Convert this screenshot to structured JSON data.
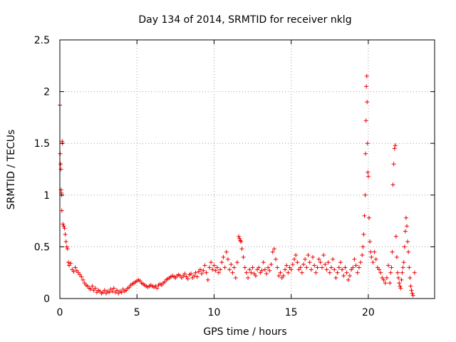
{
  "chart_data": {
    "type": "scatter",
    "title": "Day 134 of 2014, SRMTID for receiver nklg",
    "xlabel": "GPS time / hours",
    "ylabel": "SRMTID / TECUs",
    "xlim": [
      0,
      24.3
    ],
    "ylim": [
      0,
      2.5
    ],
    "x_ticks": [
      0,
      5,
      10,
      15,
      20
    ],
    "x_tick_labels": [
      "0",
      "5",
      "10",
      "15",
      "20"
    ],
    "y_ticks": [
      0,
      0.5,
      1,
      1.5,
      2,
      2.5
    ],
    "y_tick_labels": [
      "0",
      "0.5",
      "1",
      "1.5",
      "2",
      "2.5"
    ],
    "grid": true,
    "marker": "+",
    "color": "#ee0000",
    "series": [
      {
        "name": "SRMTID",
        "points": [
          [
            0.0,
            1.87
          ],
          [
            0.02,
            1.4
          ],
          [
            0.05,
            1.3
          ],
          [
            0.07,
            1.25
          ],
          [
            0.08,
            1.05
          ],
          [
            0.1,
            1.02
          ],
          [
            0.12,
            1.0
          ],
          [
            0.13,
            0.85
          ],
          [
            0.15,
            1.52
          ],
          [
            0.17,
            1.5
          ],
          [
            0.2,
            0.72
          ],
          [
            0.25,
            0.7
          ],
          [
            0.3,
            0.68
          ],
          [
            0.35,
            0.62
          ],
          [
            0.4,
            0.55
          ],
          [
            0.45,
            0.5
          ],
          [
            0.5,
            0.48
          ],
          [
            0.55,
            0.35
          ],
          [
            0.6,
            0.32
          ],
          [
            0.7,
            0.34
          ],
          [
            0.8,
            0.28
          ],
          [
            0.9,
            0.26
          ],
          [
            1.0,
            0.3
          ],
          [
            1.1,
            0.27
          ],
          [
            1.2,
            0.25
          ],
          [
            1.3,
            0.23
          ],
          [
            1.4,
            0.21
          ],
          [
            1.5,
            0.18
          ],
          [
            1.6,
            0.15
          ],
          [
            1.7,
            0.13
          ],
          [
            1.8,
            0.12
          ],
          [
            1.9,
            0.1
          ],
          [
            2.0,
            0.09
          ],
          [
            2.1,
            0.12
          ],
          [
            2.2,
            0.08
          ],
          [
            2.3,
            0.1
          ],
          [
            2.4,
            0.06
          ],
          [
            2.5,
            0.08
          ],
          [
            2.6,
            0.07
          ],
          [
            2.7,
            0.05
          ],
          [
            2.8,
            0.06
          ],
          [
            2.9,
            0.08
          ],
          [
            3.0,
            0.05
          ],
          [
            3.1,
            0.07
          ],
          [
            3.2,
            0.06
          ],
          [
            3.3,
            0.09
          ],
          [
            3.4,
            0.07
          ],
          [
            3.5,
            0.1
          ],
          [
            3.6,
            0.06
          ],
          [
            3.7,
            0.08
          ],
          [
            3.8,
            0.05
          ],
          [
            3.9,
            0.07
          ],
          [
            4.0,
            0.06
          ],
          [
            4.1,
            0.09
          ],
          [
            4.2,
            0.07
          ],
          [
            4.3,
            0.08
          ],
          [
            4.4,
            0.1
          ],
          [
            4.5,
            0.11
          ],
          [
            4.6,
            0.13
          ],
          [
            4.7,
            0.14
          ],
          [
            4.8,
            0.15
          ],
          [
            4.9,
            0.16
          ],
          [
            5.0,
            0.17
          ],
          [
            5.1,
            0.18
          ],
          [
            5.2,
            0.17
          ],
          [
            5.3,
            0.15
          ],
          [
            5.4,
            0.14
          ],
          [
            5.5,
            0.13
          ],
          [
            5.6,
            0.12
          ],
          [
            5.7,
            0.11
          ],
          [
            5.8,
            0.12
          ],
          [
            5.9,
            0.13
          ],
          [
            6.0,
            0.12
          ],
          [
            6.1,
            0.11
          ],
          [
            6.2,
            0.12
          ],
          [
            6.3,
            0.1
          ],
          [
            6.4,
            0.13
          ],
          [
            6.5,
            0.14
          ],
          [
            6.6,
            0.13
          ],
          [
            6.7,
            0.15
          ],
          [
            6.8,
            0.16
          ],
          [
            6.9,
            0.18
          ],
          [
            7.0,
            0.19
          ],
          [
            7.1,
            0.2
          ],
          [
            7.2,
            0.21
          ],
          [
            7.3,
            0.22
          ],
          [
            7.4,
            0.21
          ],
          [
            7.5,
            0.2
          ],
          [
            7.6,
            0.22
          ],
          [
            7.7,
            0.23
          ],
          [
            7.8,
            0.22
          ],
          [
            7.9,
            0.2
          ],
          [
            8.0,
            0.22
          ],
          [
            8.1,
            0.24
          ],
          [
            8.2,
            0.21
          ],
          [
            8.3,
            0.19
          ],
          [
            8.4,
            0.23
          ],
          [
            8.5,
            0.24
          ],
          [
            8.6,
            0.2
          ],
          [
            8.7,
            0.22
          ],
          [
            8.8,
            0.25
          ],
          [
            8.9,
            0.21
          ],
          [
            9.0,
            0.26
          ],
          [
            9.1,
            0.28
          ],
          [
            9.2,
            0.24
          ],
          [
            9.3,
            0.27
          ],
          [
            9.4,
            0.32
          ],
          [
            9.5,
            0.25
          ],
          [
            9.6,
            0.18
          ],
          [
            9.7,
            0.3
          ],
          [
            9.8,
            0.35
          ],
          [
            9.9,
            0.28
          ],
          [
            10.0,
            0.32
          ],
          [
            10.1,
            0.27
          ],
          [
            10.2,
            0.3
          ],
          [
            10.3,
            0.25
          ],
          [
            10.4,
            0.28
          ],
          [
            10.5,
            0.35
          ],
          [
            10.6,
            0.4
          ],
          [
            10.7,
            0.3
          ],
          [
            10.8,
            0.45
          ],
          [
            10.9,
            0.38
          ],
          [
            11.0,
            0.28
          ],
          [
            11.1,
            0.33
          ],
          [
            11.2,
            0.25
          ],
          [
            11.3,
            0.3
          ],
          [
            11.4,
            0.2
          ],
          [
            11.5,
            0.35
          ],
          [
            11.6,
            0.6
          ],
          [
            11.65,
            0.58
          ],
          [
            11.7,
            0.56
          ],
          [
            11.75,
            0.55
          ],
          [
            11.8,
            0.48
          ],
          [
            11.9,
            0.4
          ],
          [
            12.0,
            0.3
          ],
          [
            12.1,
            0.25
          ],
          [
            12.2,
            0.2
          ],
          [
            12.3,
            0.28
          ],
          [
            12.4,
            0.25
          ],
          [
            12.5,
            0.3
          ],
          [
            12.6,
            0.24
          ],
          [
            12.7,
            0.22
          ],
          [
            12.8,
            0.28
          ],
          [
            12.9,
            0.3
          ],
          [
            13.0,
            0.25
          ],
          [
            13.1,
            0.27
          ],
          [
            13.2,
            0.35
          ],
          [
            13.3,
            0.28
          ],
          [
            13.4,
            0.24
          ],
          [
            13.5,
            0.3
          ],
          [
            13.6,
            0.27
          ],
          [
            13.7,
            0.33
          ],
          [
            13.8,
            0.45
          ],
          [
            13.9,
            0.48
          ],
          [
            14.0,
            0.38
          ],
          [
            14.1,
            0.3
          ],
          [
            14.2,
            0.22
          ],
          [
            14.3,
            0.25
          ],
          [
            14.4,
            0.2
          ],
          [
            14.5,
            0.22
          ],
          [
            14.6,
            0.28
          ],
          [
            14.7,
            0.32
          ],
          [
            14.8,
            0.25
          ],
          [
            14.9,
            0.3
          ],
          [
            15.0,
            0.28
          ],
          [
            15.1,
            0.33
          ],
          [
            15.2,
            0.38
          ],
          [
            15.3,
            0.42
          ],
          [
            15.4,
            0.35
          ],
          [
            15.5,
            0.28
          ],
          [
            15.6,
            0.3
          ],
          [
            15.7,
            0.25
          ],
          [
            15.8,
            0.33
          ],
          [
            15.9,
            0.38
          ],
          [
            16.0,
            0.3
          ],
          [
            16.1,
            0.42
          ],
          [
            16.2,
            0.35
          ],
          [
            16.3,
            0.28
          ],
          [
            16.4,
            0.4
          ],
          [
            16.5,
            0.32
          ],
          [
            16.6,
            0.25
          ],
          [
            16.7,
            0.3
          ],
          [
            16.8,
            0.38
          ],
          [
            16.9,
            0.35
          ],
          [
            17.0,
            0.3
          ],
          [
            17.1,
            0.42
          ],
          [
            17.2,
            0.33
          ],
          [
            17.3,
            0.28
          ],
          [
            17.4,
            0.35
          ],
          [
            17.5,
            0.25
          ],
          [
            17.6,
            0.3
          ],
          [
            17.7,
            0.38
          ],
          [
            17.8,
            0.28
          ],
          [
            17.9,
            0.2
          ],
          [
            18.0,
            0.25
          ],
          [
            18.1,
            0.3
          ],
          [
            18.2,
            0.35
          ],
          [
            18.3,
            0.28
          ],
          [
            18.4,
            0.22
          ],
          [
            18.5,
            0.3
          ],
          [
            18.6,
            0.25
          ],
          [
            18.7,
            0.18
          ],
          [
            18.8,
            0.22
          ],
          [
            18.9,
            0.28
          ],
          [
            19.0,
            0.3
          ],
          [
            19.1,
            0.38
          ],
          [
            19.2,
            0.32
          ],
          [
            19.3,
            0.25
          ],
          [
            19.4,
            0.3
          ],
          [
            19.5,
            0.35
          ],
          [
            19.6,
            0.42
          ],
          [
            19.65,
            0.5
          ],
          [
            19.7,
            0.62
          ],
          [
            19.75,
            0.8
          ],
          [
            19.8,
            1.0
          ],
          [
            19.82,
            1.4
          ],
          [
            19.85,
            1.72
          ],
          [
            19.87,
            2.05
          ],
          [
            19.9,
            2.15
          ],
          [
            19.92,
            1.9
          ],
          [
            19.95,
            1.5
          ],
          [
            19.97,
            1.22
          ],
          [
            20.0,
            1.18
          ],
          [
            20.05,
            0.78
          ],
          [
            20.1,
            0.55
          ],
          [
            20.15,
            0.45
          ],
          [
            20.2,
            0.4
          ],
          [
            20.3,
            0.35
          ],
          [
            20.4,
            0.45
          ],
          [
            20.5,
            0.38
          ],
          [
            20.6,
            0.3
          ],
          [
            20.7,
            0.28
          ],
          [
            20.8,
            0.25
          ],
          [
            20.9,
            0.2
          ],
          [
            21.0,
            0.18
          ],
          [
            21.1,
            0.15
          ],
          [
            21.2,
            0.2
          ],
          [
            21.3,
            0.32
          ],
          [
            21.4,
            0.15
          ],
          [
            21.45,
            0.25
          ],
          [
            21.5,
            0.3
          ],
          [
            21.55,
            0.45
          ],
          [
            21.6,
            1.1
          ],
          [
            21.65,
            1.3
          ],
          [
            21.7,
            1.45
          ],
          [
            21.75,
            1.48
          ],
          [
            21.8,
            0.6
          ],
          [
            21.85,
            0.4
          ],
          [
            21.9,
            0.25
          ],
          [
            21.95,
            0.2
          ],
          [
            22.0,
            0.15
          ],
          [
            22.05,
            0.12
          ],
          [
            22.1,
            0.1
          ],
          [
            22.15,
            0.18
          ],
          [
            22.2,
            0.25
          ],
          [
            22.25,
            0.3
          ],
          [
            22.3,
            0.35
          ],
          [
            22.35,
            0.5
          ],
          [
            22.4,
            0.65
          ],
          [
            22.45,
            0.78
          ],
          [
            22.5,
            0.7
          ],
          [
            22.55,
            0.55
          ],
          [
            22.6,
            0.45
          ],
          [
            22.65,
            0.3
          ],
          [
            22.7,
            0.2
          ],
          [
            22.75,
            0.12
          ],
          [
            22.8,
            0.08
          ],
          [
            22.85,
            0.05
          ],
          [
            22.9,
            0.03
          ],
          [
            23.0,
            0.25
          ]
        ]
      }
    ]
  }
}
